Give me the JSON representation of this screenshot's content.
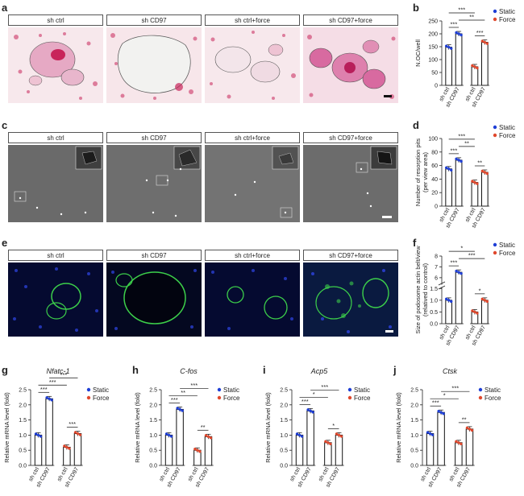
{
  "panel_letters": {
    "a": "a",
    "b": "b",
    "c": "c",
    "d": "d",
    "e": "e",
    "f": "f",
    "g": "g",
    "h": "h",
    "i": "i",
    "j": "j"
  },
  "conditions": [
    "sh ctrl",
    "sh CD97",
    "sh ctrl+force",
    "sh CD97+force"
  ],
  "legend": {
    "static": "Static",
    "force": "Force"
  },
  "colors": {
    "static": "#1f3fd6",
    "force": "#e0482d",
    "stain_red": "#c8245a",
    "fluor_green": "#3ccf4a",
    "fluor_blue": "#2a3fd0"
  },
  "chart_data": [
    {
      "id": "b",
      "type": "bar",
      "categories": [
        "sh ctrl",
        "sh CD97",
        "sh ctrl",
        "sh CD97"
      ],
      "ylabel": "N.OC/well",
      "ylim": [
        0,
        250
      ],
      "yticks": [
        "0",
        "50",
        "100",
        "150",
        "200",
        "250"
      ],
      "values": [
        148,
        200,
        72,
        167
      ],
      "series_of_bar": [
        "static",
        "static",
        "force",
        "force"
      ],
      "significance": [
        "***",
        "***",
        "**",
        "***"
      ]
    },
    {
      "id": "d",
      "type": "bar",
      "categories": [
        "sh ctrl",
        "sh CD97",
        "sh ctrl",
        "sh CD97"
      ],
      "ylabel": "Number of resorption pits (per view area)",
      "ylim": [
        0,
        100
      ],
      "yticks": [
        "0",
        "20",
        "40",
        "60",
        "80",
        "100"
      ],
      "values": [
        55,
        68,
        35,
        50
      ],
      "series_of_bar": [
        "static",
        "static",
        "force",
        "force"
      ],
      "significance": [
        "***",
        "**",
        "***",
        "**"
      ]
    },
    {
      "id": "f",
      "type": "bar",
      "categories": [
        "sh ctrl",
        "sh CD97",
        "sh ctrl",
        "sh CD97"
      ],
      "ylabel": "Size of podosome actin belt/view (relatived to control)",
      "ylim": [
        0,
        8
      ],
      "axis_break": [
        1.5,
        5.5
      ],
      "yticks": [
        "0.0",
        "0.5",
        "1.0",
        "1.5",
        "6",
        "7",
        "8"
      ],
      "values": [
        1.0,
        6.5,
        0.5,
        1.0
      ],
      "series_of_bar": [
        "static",
        "static",
        "force",
        "force"
      ],
      "significance": [
        "*",
        "***",
        "***",
        "*"
      ]
    },
    {
      "id": "g",
      "type": "bar",
      "title": "Nfatc-1",
      "categories": [
        "sh ctrl",
        "sh CD97",
        "sh ctrl",
        "sh CD97"
      ],
      "ylabel": "Relative mRNA level (fold)",
      "ylim": [
        0,
        2.5
      ],
      "yticks": [
        "0.0",
        "0.5",
        "1.0",
        "1.5",
        "2.0",
        "2.5"
      ],
      "values": [
        1.0,
        2.2,
        0.6,
        1.05
      ],
      "series_of_bar": [
        "static",
        "static",
        "force",
        "force"
      ],
      "significance": [
        "***",
        "***",
        "***",
        "***"
      ]
    },
    {
      "id": "h",
      "type": "bar",
      "title": "C-fos",
      "categories": [
        "sh ctrl",
        "sh CD97",
        "sh ctrl",
        "sh CD97"
      ],
      "ylabel": "Relative mRNA level (fold)",
      "ylim": [
        0,
        2.5
      ],
      "yticks": [
        "0.0",
        "0.5",
        "1.0",
        "1.5",
        "2.0",
        "2.5"
      ],
      "values": [
        1.0,
        1.85,
        0.5,
        0.95
      ],
      "series_of_bar": [
        "static",
        "static",
        "force",
        "force"
      ],
      "significance": [
        "***",
        "**",
        "***",
        "**"
      ]
    },
    {
      "id": "i",
      "type": "bar",
      "title": "Acp5",
      "categories": [
        "sh ctrl",
        "sh CD97",
        "sh ctrl",
        "sh CD97"
      ],
      "ylabel": "Relative mRNA level (fold)",
      "ylim": [
        0,
        2.5
      ],
      "yticks": [
        "0.0",
        "0.5",
        "1.0",
        "1.5",
        "2.0",
        "2.5"
      ],
      "values": [
        1.0,
        1.8,
        0.75,
        1.0
      ],
      "series_of_bar": [
        "static",
        "static",
        "force",
        "force"
      ],
      "significance": [
        "***",
        "*",
        "***",
        "*"
      ]
    },
    {
      "id": "j",
      "type": "bar",
      "title": "Ctsk",
      "categories": [
        "sh ctrl",
        "sh CD97",
        "sh ctrl",
        "sh CD97"
      ],
      "ylabel": "Relative mRNA level (fold)",
      "ylim": [
        0,
        2.5
      ],
      "yticks": [
        "0.0",
        "0.5",
        "1.0",
        "1.5",
        "2.0",
        "2.5"
      ],
      "values": [
        1.05,
        1.75,
        0.75,
        1.2
      ],
      "series_of_bar": [
        "static",
        "static",
        "force",
        "force"
      ],
      "significance": [
        "***",
        "*",
        "***",
        "**"
      ]
    }
  ]
}
